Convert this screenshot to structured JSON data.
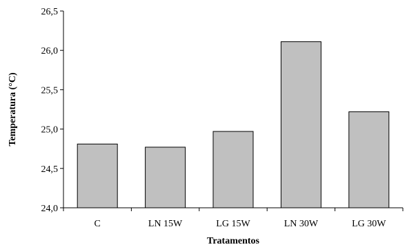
{
  "chart_data": {
    "type": "bar",
    "title": "",
    "xlabel": "Tratamentos",
    "ylabel": "Temperatura (°C)",
    "ylim": [
      24.0,
      26.5
    ],
    "yticks": [
      "24,0",
      "24,5",
      "25,0",
      "25,5",
      "26,0",
      "26,5"
    ],
    "categories": [
      "C",
      "LN 15W",
      "LG 15W",
      "LN 30W",
      "LG 30W"
    ],
    "values": [
      24.81,
      24.77,
      24.97,
      26.11,
      25.22
    ],
    "bar_color": "#c0c0c0",
    "bar_stroke": "#000000",
    "grid": false,
    "legend": "none"
  }
}
